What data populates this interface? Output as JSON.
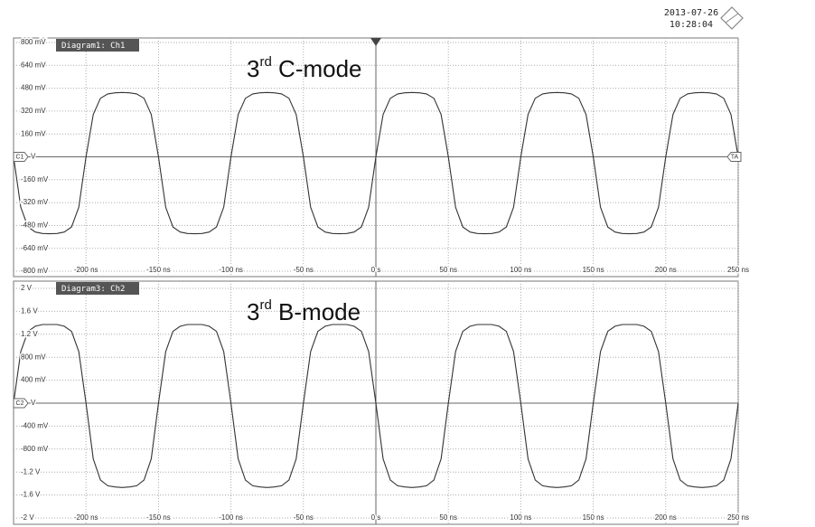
{
  "header": {
    "date": "2013-07-26",
    "time": "10:28:04"
  },
  "chart_data": [
    {
      "type": "line",
      "title": "Diagram1: Ch1",
      "annotation": {
        "base": "3",
        "sup": "rd",
        "rest": " C-mode"
      },
      "markers": {
        "left": "C1",
        "right": "TA"
      },
      "x": [
        -250,
        -245,
        -240,
        -235,
        -230,
        -225,
        -220,
        -215,
        -210,
        -205,
        -200,
        -195,
        -190,
        -185,
        -180,
        -175,
        -170,
        -165,
        -160,
        -155,
        -150,
        -145,
        -140,
        -135,
        -130,
        -125,
        -120,
        -115,
        -110,
        -105,
        -100,
        -95,
        -90,
        -85,
        -80,
        -75,
        -70,
        -65,
        -60,
        -55,
        -50,
        -45,
        -40,
        -35,
        -30,
        -25,
        -20,
        -15,
        -10,
        -5,
        0,
        5,
        10,
        15,
        20,
        25,
        30,
        35,
        40,
        45,
        50,
        55,
        60,
        65,
        70,
        75,
        80,
        85,
        90,
        95,
        100,
        105,
        110,
        115,
        120,
        125,
        130,
        135,
        140,
        145,
        150,
        155,
        160,
        165,
        170,
        175,
        180,
        185,
        190,
        195,
        200,
        205,
        210,
        215,
        220,
        225,
        230,
        235,
        240,
        245,
        250
      ],
      "series": [
        {
          "name": "Ch1",
          "color": "#333333",
          "values": [
            0,
            -353,
            -491,
            -526,
            -536,
            -538,
            -536,
            -526,
            -491,
            -353,
            0,
            296,
            410,
            440,
            448,
            450,
            448,
            440,
            410,
            296,
            0,
            -353,
            -491,
            -526,
            -536,
            -538,
            -536,
            -526,
            -491,
            -353,
            0,
            296,
            410,
            440,
            448,
            450,
            448,
            440,
            410,
            296,
            0,
            -353,
            -491,
            -526,
            -536,
            -538,
            -536,
            -526,
            -491,
            -353,
            0,
            296,
            410,
            440,
            448,
            450,
            448,
            440,
            410,
            296,
            0,
            -353,
            -491,
            -526,
            -536,
            -538,
            -536,
            -526,
            -491,
            -353,
            0,
            296,
            410,
            440,
            448,
            450,
            448,
            440,
            410,
            296,
            0,
            -353,
            -491,
            -526,
            -536,
            -538,
            -536,
            -526,
            -491,
            -353,
            0,
            296,
            410,
            440,
            448,
            450,
            448,
            440,
            410,
            296,
            0
          ]
        }
      ],
      "xlim": [
        -250,
        250
      ],
      "xticks": [
        {
          "value": -200,
          "label": "-200 ns"
        },
        {
          "value": -150,
          "label": "-150 ns"
        },
        {
          "value": -100,
          "label": "-100 ns"
        },
        {
          "value": -50,
          "label": "-50 ns"
        },
        {
          "value": 0,
          "label": "0 s"
        },
        {
          "value": 50,
          "label": "50 ns"
        },
        {
          "value": 100,
          "label": "100 ns"
        },
        {
          "value": 150,
          "label": "150 ns"
        },
        {
          "value": 200,
          "label": "200 ns"
        },
        {
          "value": 250,
          "label": "250 ns"
        }
      ],
      "ylim": [
        -800,
        800
      ],
      "yticks": [
        {
          "value": 800,
          "label": "800 mV"
        },
        {
          "value": 640,
          "label": "640 mV"
        },
        {
          "value": 480,
          "label": "480 mV"
        },
        {
          "value": 320,
          "label": "320 mV"
        },
        {
          "value": 160,
          "label": "160 mV"
        },
        {
          "value": 0,
          "label": "V"
        },
        {
          "value": -160,
          "label": "-160 mV"
        },
        {
          "value": -320,
          "label": "-320 mV"
        },
        {
          "value": -480,
          "label": "-480 mV"
        },
        {
          "value": -640,
          "label": "-640 mV"
        },
        {
          "value": -800,
          "label": "-800 mV"
        }
      ],
      "grid": true
    },
    {
      "type": "line",
      "title": "Diagram3: Ch2",
      "annotation": {
        "base": "3",
        "sup": "rd",
        "rest": " B-mode"
      },
      "markers": {
        "left": "C2"
      },
      "x": [
        -250,
        -245,
        -240,
        -235,
        -230,
        -225,
        -220,
        -215,
        -210,
        -205,
        -200,
        -195,
        -190,
        -185,
        -180,
        -175,
        -170,
        -165,
        -160,
        -155,
        -150,
        -145,
        -140,
        -135,
        -130,
        -125,
        -120,
        -115,
        -110,
        -105,
        -100,
        -95,
        -90,
        -85,
        -80,
        -75,
        -70,
        -65,
        -60,
        -55,
        -50,
        -45,
        -40,
        -35,
        -30,
        -25,
        -20,
        -15,
        -10,
        -5,
        0,
        5,
        10,
        15,
        20,
        25,
        30,
        35,
        40,
        45,
        50,
        55,
        60,
        65,
        70,
        75,
        80,
        85,
        90,
        95,
        100,
        105,
        110,
        115,
        120,
        125,
        130,
        135,
        140,
        145,
        150,
        155,
        160,
        165,
        170,
        175,
        180,
        185,
        190,
        195,
        200,
        205,
        210,
        215,
        220,
        225,
        230,
        235,
        240,
        245,
        250
      ],
      "series": [
        {
          "name": "Ch2",
          "color": "#333333",
          "values": [
            0,
            0.9,
            1.25,
            1.34,
            1.37,
            1.37,
            1.37,
            1.34,
            1.25,
            0.9,
            0,
            -0.97,
            -1.34,
            -1.44,
            -1.46,
            -1.47,
            -1.46,
            -1.44,
            -1.34,
            -0.97,
            0,
            0.9,
            1.25,
            1.34,
            1.37,
            1.37,
            1.37,
            1.34,
            1.25,
            0.9,
            0,
            -0.97,
            -1.34,
            -1.44,
            -1.46,
            -1.47,
            -1.46,
            -1.44,
            -1.34,
            -0.97,
            0,
            0.9,
            1.25,
            1.34,
            1.37,
            1.37,
            1.37,
            1.34,
            1.25,
            0.9,
            0,
            -0.97,
            -1.34,
            -1.44,
            -1.46,
            -1.47,
            -1.46,
            -1.44,
            -1.34,
            -0.97,
            0,
            0.9,
            1.25,
            1.34,
            1.37,
            1.37,
            1.37,
            1.34,
            1.25,
            0.9,
            0,
            -0.97,
            -1.34,
            -1.44,
            -1.46,
            -1.47,
            -1.46,
            -1.44,
            -1.34,
            -0.97,
            0,
            0.9,
            1.25,
            1.34,
            1.37,
            1.37,
            1.37,
            1.34,
            1.25,
            0.9,
            0,
            -0.97,
            -1.34,
            -1.44,
            -1.46,
            -1.47,
            -1.46,
            -1.44,
            -1.34,
            -0.97,
            0
          ]
        }
      ],
      "xlim": [
        -250,
        250
      ],
      "xticks": [
        {
          "value": -200,
          "label": "-200 ns"
        },
        {
          "value": -150,
          "label": "-150 ns"
        },
        {
          "value": -100,
          "label": "-100 ns"
        },
        {
          "value": -50,
          "label": "-50 ns"
        },
        {
          "value": 0,
          "label": "0 s"
        },
        {
          "value": 50,
          "label": "50 ns"
        },
        {
          "value": 100,
          "label": "100 ns"
        },
        {
          "value": 150,
          "label": "150 ns"
        },
        {
          "value": 200,
          "label": "200 ns"
        },
        {
          "value": 250,
          "label": "250 ns"
        }
      ],
      "ylim": [
        -2,
        2
      ],
      "yticks": [
        {
          "value": 2,
          "label": "2 V"
        },
        {
          "value": 1.6,
          "label": "1.6 V"
        },
        {
          "value": 1.2,
          "label": "1.2 V"
        },
        {
          "value": 0.8,
          "label": "800 mV"
        },
        {
          "value": 0.4,
          "label": "400 mV"
        },
        {
          "value": 0,
          "label": "V"
        },
        {
          "value": -0.4,
          "label": "-400 mV"
        },
        {
          "value": -0.8,
          "label": "-800 mV"
        },
        {
          "value": -1.2,
          "label": "-1.2 V"
        },
        {
          "value": -1.6,
          "label": "-1.6 V"
        },
        {
          "value": -2,
          "label": "-2 V"
        }
      ],
      "grid": true
    }
  ]
}
